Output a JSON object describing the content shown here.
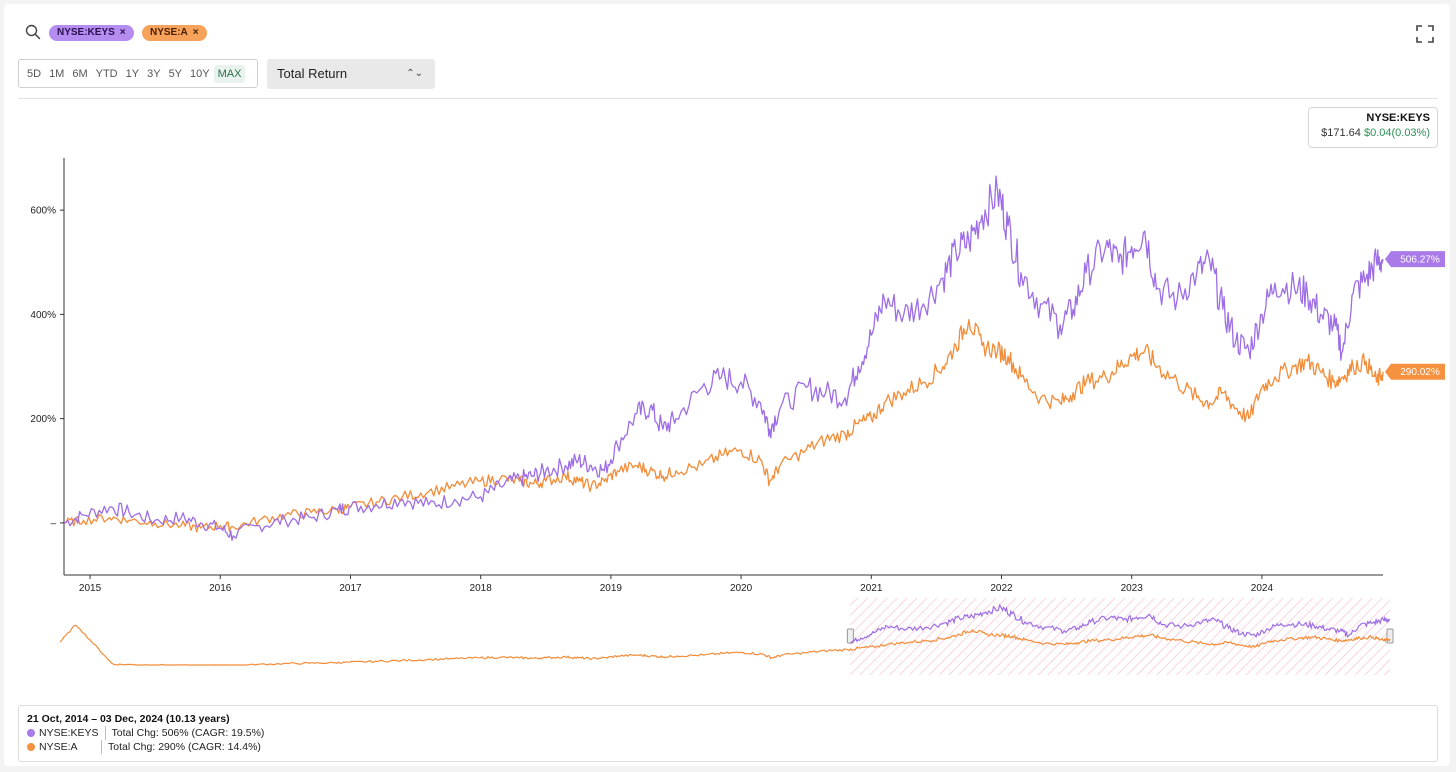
{
  "colors": {
    "keys": "#9d6ee6",
    "a": "#f28c38",
    "keys_tag": "#a97ae8",
    "a_tag": "#f5913f",
    "brush_hatch": "#f4a6c4"
  },
  "header": {
    "tickers": [
      {
        "label": "NYSE:KEYS"
      },
      {
        "label": "NYSE:A"
      }
    ],
    "remove_icon": "×"
  },
  "toolbar": {
    "ranges": [
      "5D",
      "1M",
      "6M",
      "YTD",
      "1Y",
      "3Y",
      "5Y",
      "10Y",
      "MAX"
    ],
    "active_range": "MAX",
    "metric": "Total Return"
  },
  "tooltip": {
    "ticker": "NYSE:KEYS",
    "price": "$171.64",
    "change": "$0.04(0.03%)"
  },
  "chart_data": {
    "type": "line",
    "x_ticks": [
      "2015",
      "2016",
      "2017",
      "2018",
      "2019",
      "2020",
      "2021",
      "2022",
      "2023",
      "2024"
    ],
    "y_ticks": [
      {
        "value": 0,
        "label": "–"
      },
      {
        "value": 200,
        "label": "200%"
      },
      {
        "value": 400,
        "label": "400%"
      },
      {
        "value": 600,
        "label": "600%"
      }
    ],
    "xlim": [
      2014.8,
      2024.93
    ],
    "ylim": [
      -100,
      700
    ],
    "series": [
      {
        "name": "NYSE:KEYS",
        "color": "#9d6ee6",
        "end_label": "506.27%",
        "points": [
          [
            2014.8,
            0
          ],
          [
            2014.95,
            15
          ],
          [
            2015.15,
            30
          ],
          [
            2015.3,
            20
          ],
          [
            2015.5,
            5
          ],
          [
            2015.7,
            10
          ],
          [
            2015.85,
            0
          ],
          [
            2016.0,
            -10
          ],
          [
            2016.1,
            -25
          ],
          [
            2016.3,
            -5
          ],
          [
            2016.5,
            5
          ],
          [
            2016.7,
            10
          ],
          [
            2016.9,
            25
          ],
          [
            2017.0,
            30
          ],
          [
            2017.2,
            35
          ],
          [
            2017.4,
            45
          ],
          [
            2017.6,
            35
          ],
          [
            2017.8,
            45
          ],
          [
            2018.0,
            50
          ],
          [
            2018.15,
            70
          ],
          [
            2018.3,
            85
          ],
          [
            2018.4,
            90
          ],
          [
            2018.5,
            100
          ],
          [
            2018.65,
            110
          ],
          [
            2018.75,
            120
          ],
          [
            2018.85,
            110
          ],
          [
            2018.95,
            100
          ],
          [
            2019.05,
            150
          ],
          [
            2019.2,
            210
          ],
          [
            2019.3,
            220
          ],
          [
            2019.4,
            180
          ],
          [
            2019.5,
            200
          ],
          [
            2019.7,
            260
          ],
          [
            2019.85,
            280
          ],
          [
            2020.0,
            270
          ],
          [
            2020.15,
            230
          ],
          [
            2020.22,
            180
          ],
          [
            2020.3,
            220
          ],
          [
            2020.5,
            260
          ],
          [
            2020.65,
            250
          ],
          [
            2020.8,
            240
          ],
          [
            2020.9,
            300
          ],
          [
            2021.0,
            360
          ],
          [
            2021.1,
            430
          ],
          [
            2021.25,
            400
          ],
          [
            2021.4,
            420
          ],
          [
            2021.55,
            470
          ],
          [
            2021.65,
            520
          ],
          [
            2021.75,
            540
          ],
          [
            2021.85,
            590
          ],
          [
            2021.97,
            635
          ],
          [
            2022.05,
            570
          ],
          [
            2022.15,
            480
          ],
          [
            2022.3,
            420
          ],
          [
            2022.45,
            380
          ],
          [
            2022.55,
            410
          ],
          [
            2022.65,
            480
          ],
          [
            2022.8,
            530
          ],
          [
            2022.9,
            500
          ],
          [
            2023.0,
            530
          ],
          [
            2023.1,
            560
          ],
          [
            2023.2,
            450
          ],
          [
            2023.35,
            430
          ],
          [
            2023.5,
            480
          ],
          [
            2023.6,
            500
          ],
          [
            2023.7,
            410
          ],
          [
            2023.8,
            350
          ],
          [
            2023.9,
            330
          ],
          [
            2024.0,
            400
          ],
          [
            2024.1,
            460
          ],
          [
            2024.25,
            450
          ],
          [
            2024.35,
            440
          ],
          [
            2024.45,
            400
          ],
          [
            2024.55,
            380
          ],
          [
            2024.62,
            330
          ],
          [
            2024.7,
            440
          ],
          [
            2024.8,
            470
          ],
          [
            2024.88,
            500
          ],
          [
            2024.93,
            506
          ]
        ]
      },
      {
        "name": "NYSE:A",
        "color": "#f28c38",
        "end_label": "290.02%",
        "points": [
          [
            2014.8,
            0
          ],
          [
            2014.95,
            5
          ],
          [
            2015.15,
            10
          ],
          [
            2015.3,
            5
          ],
          [
            2015.5,
            0
          ],
          [
            2015.7,
            -5
          ],
          [
            2015.85,
            -10
          ],
          [
            2016.0,
            -5
          ],
          [
            2016.1,
            -8
          ],
          [
            2016.3,
            5
          ],
          [
            2016.5,
            15
          ],
          [
            2016.7,
            20
          ],
          [
            2016.9,
            25
          ],
          [
            2017.0,
            30
          ],
          [
            2017.2,
            40
          ],
          [
            2017.4,
            50
          ],
          [
            2017.6,
            60
          ],
          [
            2017.8,
            70
          ],
          [
            2018.0,
            80
          ],
          [
            2018.15,
            85
          ],
          [
            2018.3,
            80
          ],
          [
            2018.4,
            75
          ],
          [
            2018.5,
            80
          ],
          [
            2018.65,
            90
          ],
          [
            2018.75,
            80
          ],
          [
            2018.85,
            70
          ],
          [
            2018.95,
            80
          ],
          [
            2019.05,
            100
          ],
          [
            2019.2,
            110
          ],
          [
            2019.3,
            100
          ],
          [
            2019.4,
            90
          ],
          [
            2019.5,
            100
          ],
          [
            2019.7,
            110
          ],
          [
            2019.85,
            130
          ],
          [
            2020.0,
            140
          ],
          [
            2020.15,
            120
          ],
          [
            2020.22,
            80
          ],
          [
            2020.3,
            110
          ],
          [
            2020.5,
            140
          ],
          [
            2020.65,
            160
          ],
          [
            2020.8,
            170
          ],
          [
            2020.9,
            190
          ],
          [
            2021.0,
            200
          ],
          [
            2021.1,
            230
          ],
          [
            2021.25,
            250
          ],
          [
            2021.4,
            270
          ],
          [
            2021.55,
            300
          ],
          [
            2021.65,
            340
          ],
          [
            2021.75,
            390
          ],
          [
            2021.85,
            340
          ],
          [
            2021.97,
            330
          ],
          [
            2022.05,
            320
          ],
          [
            2022.15,
            280
          ],
          [
            2022.3,
            240
          ],
          [
            2022.45,
            230
          ],
          [
            2022.55,
            250
          ],
          [
            2022.65,
            270
          ],
          [
            2022.8,
            280
          ],
          [
            2022.9,
            300
          ],
          [
            2023.0,
            320
          ],
          [
            2023.1,
            330
          ],
          [
            2023.2,
            300
          ],
          [
            2023.35,
            270
          ],
          [
            2023.5,
            240
          ],
          [
            2023.6,
            230
          ],
          [
            2023.7,
            250
          ],
          [
            2023.8,
            220
          ],
          [
            2023.9,
            200
          ],
          [
            2024.0,
            260
          ],
          [
            2024.1,
            280
          ],
          [
            2024.25,
            300
          ],
          [
            2024.35,
            310
          ],
          [
            2024.45,
            290
          ],
          [
            2024.55,
            270
          ],
          [
            2024.62,
            280
          ],
          [
            2024.7,
            300
          ],
          [
            2024.8,
            310
          ],
          [
            2024.88,
            270
          ],
          [
            2024.93,
            290
          ]
        ]
      }
    ]
  },
  "summary": {
    "period": "21 Oct, 2014 – 03 Dec, 2024 (10.13 years)",
    "rows": [
      {
        "ticker": "NYSE:KEYS",
        "text": "Total Chg: 506% (CAGR: 19.5%)"
      },
      {
        "ticker": "NYSE:A",
        "text": "Total Chg: 290% (CAGR: 14.4%)"
      }
    ]
  }
}
